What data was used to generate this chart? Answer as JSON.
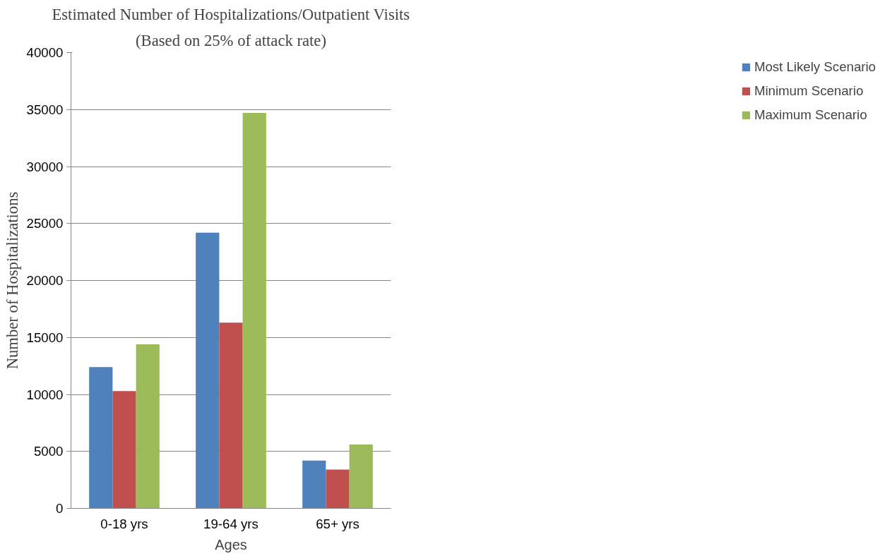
{
  "chart_data": {
    "type": "bar",
    "title": "Estimated Number of Hospitalizations/Outpatient Visits",
    "subtitle": "(Based on 25% of attack rate)",
    "xlabel": "Ages",
    "ylabel": "Number of Hospitalizations",
    "categories": [
      "0-18 yrs",
      "19-64 yrs",
      "65+ yrs"
    ],
    "series": [
      {
        "name": "Most Likely Scenario",
        "color": "#4f81bd",
        "values": [
          12400,
          24200,
          4200
        ]
      },
      {
        "name": "Minimum Scenario",
        "color": "#c0504d",
        "values": [
          10300,
          16300,
          3400
        ]
      },
      {
        "name": "Maximum Scenario",
        "color": "#9bbb59",
        "values": [
          14400,
          34700,
          5600
        ]
      }
    ],
    "ylim": [
      0,
      40000
    ],
    "yticks": [
      0,
      5000,
      10000,
      15000,
      20000,
      25000,
      30000,
      35000,
      40000
    ],
    "grid": "y",
    "legend": "right"
  }
}
